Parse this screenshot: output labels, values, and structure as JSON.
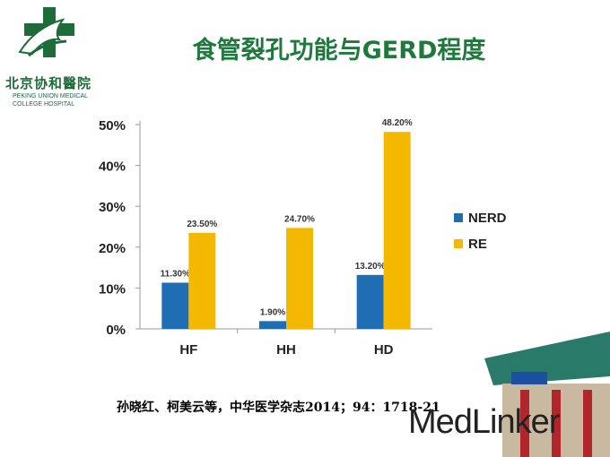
{
  "title": "食管裂孔功能与GERD程度",
  "logo": {
    "name_cn": "北京协和醫院",
    "name_en_line1": "PEKING UNION MEDICAL",
    "name_en_line2": "COLLEGE HOSPITAL"
  },
  "citation": "孙晓红、柯美云等，中华医学杂志2014；94：1718-21",
  "watermark": "MedLinker",
  "colors": {
    "title": "#1e7a3c",
    "nerd": "#1f6eb4",
    "re": "#f5b800"
  },
  "chart_data": {
    "type": "bar",
    "categories": [
      "HF",
      "HH",
      "HD"
    ],
    "series": [
      {
        "name": "NERD",
        "values": [
          11.3,
          1.9,
          13.2
        ],
        "labels": [
          "11.30%",
          "1.90%",
          "13.20%"
        ]
      },
      {
        "name": "RE",
        "values": [
          23.5,
          24.7,
          48.2
        ],
        "labels": [
          "23.50%",
          "24.70%",
          "48.20%"
        ]
      }
    ],
    "ylim": [
      0,
      50
    ],
    "yticks": [
      "0%",
      "10%",
      "20%",
      "30%",
      "40%",
      "50%"
    ],
    "grid": false,
    "legend_position": "right"
  }
}
